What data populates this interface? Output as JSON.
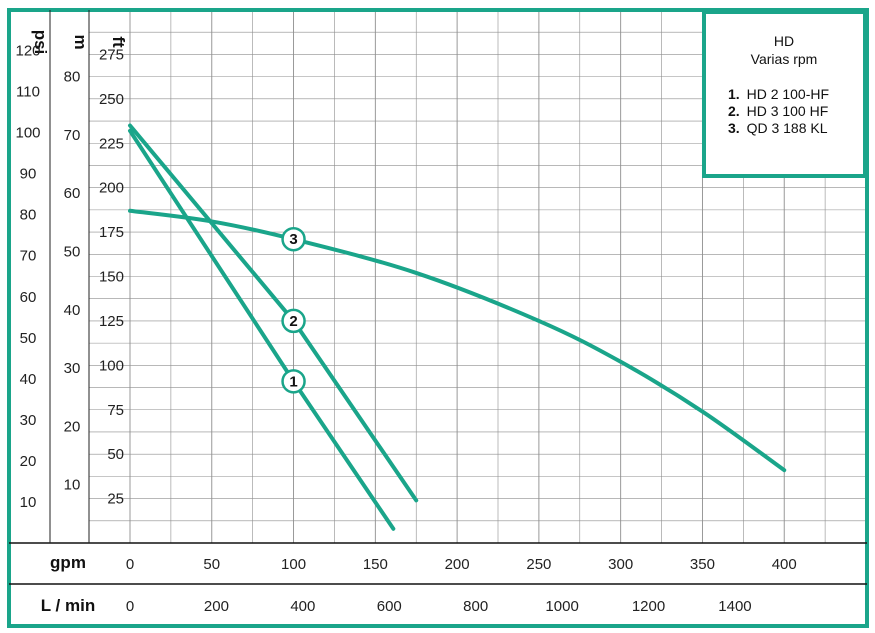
{
  "chart_data": {
    "type": "line",
    "x_unit": "gpm",
    "x_unit_secondary": "L / min",
    "x_ticks_gpm": [
      "0",
      "50",
      "100",
      "150",
      "200",
      "250",
      "300",
      "350",
      "400"
    ],
    "x_ticks_lmin": [
      "0",
      "200",
      "400",
      "600",
      "800",
      "1000",
      "1200",
      "1400"
    ],
    "y_units": [
      "psi",
      "m",
      "ft"
    ],
    "y_ticks_psi": [
      "120",
      "110",
      "100",
      "90",
      "80",
      "70",
      "60",
      "50",
      "40",
      "30",
      "20",
      "10"
    ],
    "y_ticks_m": [
      "80",
      "70",
      "60",
      "50",
      "40",
      "30",
      "20",
      "10"
    ],
    "y_ticks_ft": [
      "275",
      "250",
      "225",
      "200",
      "175",
      "150",
      "125",
      "100",
      "75",
      "50",
      "25"
    ],
    "xlim": [
      0,
      450
    ],
    "ylim_ft": [
      0,
      300
    ],
    "grid": true,
    "series_color": "#1aa58a",
    "legend": {
      "title": "HD",
      "subtitle": "Varias rpm",
      "entries": [
        {
          "num": "1.",
          "label": "HD 2 100-HF"
        },
        {
          "num": "2.",
          "label": "HD 3 100 HF"
        },
        {
          "num": "3.",
          "label": "QD 3 188 KL"
        }
      ]
    },
    "series": [
      {
        "marker": "1",
        "x": [
          0,
          100,
          161
        ],
        "y": [
          232,
          91,
          8
        ],
        "marker_at": [
          100,
          91
        ]
      },
      {
        "marker": "2",
        "x": [
          0,
          100,
          175
        ],
        "y": [
          235,
          125,
          24
        ],
        "marker_at": [
          100,
          125
        ]
      },
      {
        "marker": "3",
        "x": [
          0,
          50,
          100,
          175,
          250,
          300,
          350,
          400
        ],
        "y": [
          187,
          181,
          171,
          152,
          125,
          102,
          74,
          41
        ],
        "marker_at": [
          100,
          171
        ]
      }
    ]
  }
}
